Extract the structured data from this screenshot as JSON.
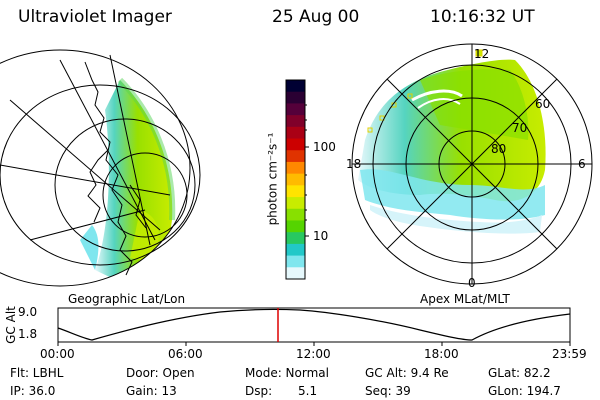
{
  "header": {
    "instrument": "Ultraviolet Imager",
    "date": "25 Aug 00",
    "time": "10:16:32 UT"
  },
  "colorbar": {
    "ticks": [
      "100",
      "10"
    ],
    "unit_label": "photon cm⁻²s⁻¹",
    "colors": [
      "#000033",
      "#2a0033",
      "#55003a",
      "#80002a",
      "#aa0015",
      "#cc0000",
      "#e03300",
      "#ff8800",
      "#ffbb00",
      "#ffe400",
      "#c8ec00",
      "#88e000",
      "#55d400",
      "#28c860",
      "#22c8c8",
      "#7fe6ee",
      "#e6f8fc"
    ]
  },
  "geo_panel": {
    "caption": "Geographic Lat/Lon"
  },
  "polar_panel": {
    "caption": "Apex MLat/MLT",
    "mlt_labels": {
      "top": "12",
      "left": "18",
      "right": "6",
      "bottom": "0"
    },
    "lat_labels": [
      "60",
      "70",
      "80"
    ]
  },
  "altitude_plot": {
    "ylabel": "GC Alt",
    "yticks": [
      "9.0",
      "1.8"
    ],
    "xticks": [
      "00:00",
      "06:00",
      "12:00",
      "18:00",
      "23:59"
    ],
    "current_marker_color": "#dd0000"
  },
  "footer": {
    "row1": {
      "flt": "Flt: LBHL",
      "door": "Door: Open",
      "mode": "Mode: Normal",
      "gcalt": "GC Alt: 9.4 Re",
      "glat": "GLat: 82.2"
    },
    "row2": {
      "ip": "IP: 36.0",
      "gain": "Gain: 13",
      "dsp_label": "Dsp:",
      "dsp_value": "5.1",
      "seq": "Seq: 39",
      "glon": "GLon: 194.7"
    }
  }
}
